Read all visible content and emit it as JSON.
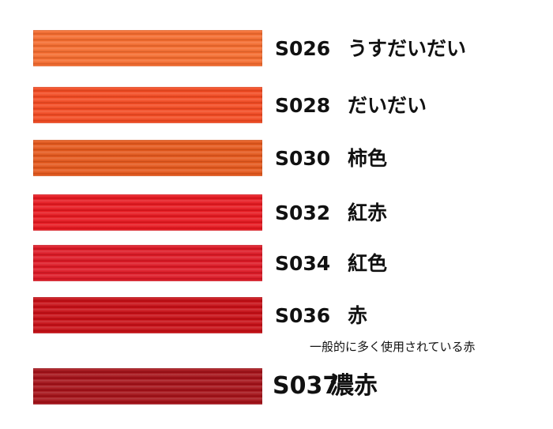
{
  "items": [
    {
      "code": "S026",
      "name": "うすだいだい",
      "color": "#f46a2c"
    },
    {
      "code": "S028",
      "name": "だいだい",
      "color": "#f2481f"
    },
    {
      "code": "S030",
      "name": "柿色",
      "color": "#e4561a"
    },
    {
      "code": "S032",
      "name": "紅赤",
      "color": "#e6161d"
    },
    {
      "code": "S034",
      "name": "紅色",
      "color": "#dc1622"
    },
    {
      "code": "S036",
      "name": "赤",
      "color": "#c60c13"
    },
    {
      "code": "S037",
      "name": "濃赤",
      "color": "#a30f16"
    }
  ],
  "note": "一般的に多く使用されている赤"
}
